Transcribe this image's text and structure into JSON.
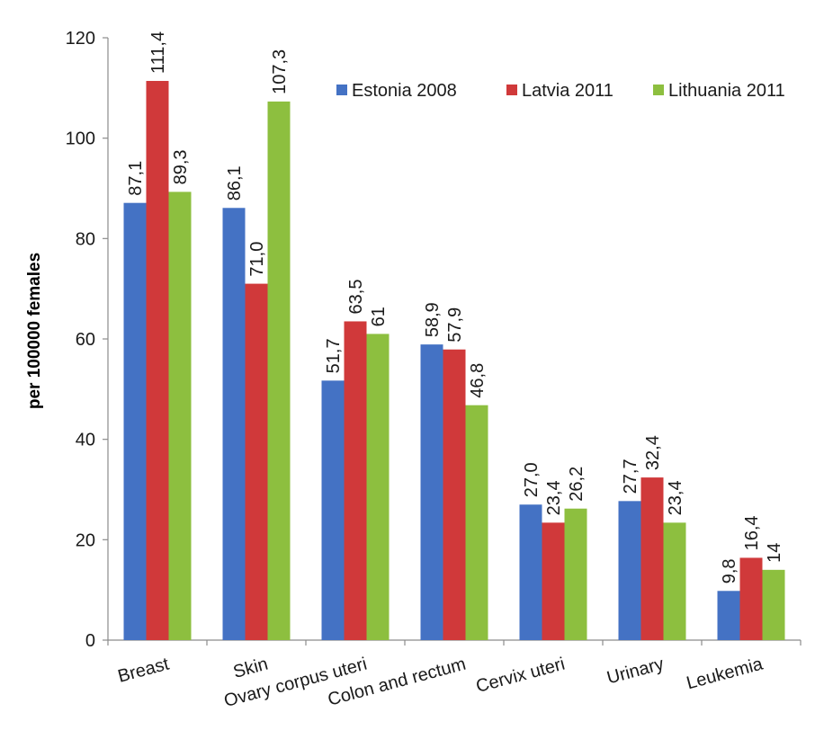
{
  "chart_data": {
    "type": "bar",
    "title": "",
    "xlabel": "",
    "ylabel": "per 100000 females",
    "ylim": [
      0,
      120
    ],
    "yticks": [
      "0",
      "20",
      "40",
      "60",
      "80",
      "100",
      "120"
    ],
    "grid": false,
    "legend_position": "top-right",
    "categories": [
      "Breast",
      "Skin",
      "Ovary corpus uteri",
      "Colon and rectum",
      "Cervix uteri",
      "Urinary",
      "Leukemia"
    ],
    "series": [
      {
        "name": "Estonia 2008",
        "color": "#4472C4",
        "values": [
          87.1,
          86.1,
          51.7,
          58.9,
          27.0,
          27.7,
          9.8
        ],
        "labels": [
          "87,1",
          "86,1",
          "51,7",
          "58,9",
          "27,0",
          "27,7",
          "9,8"
        ]
      },
      {
        "name": "Latvia 2011",
        "color": "#D0393A",
        "values": [
          111.4,
          71.0,
          63.5,
          57.9,
          23.4,
          32.4,
          16.4
        ],
        "labels": [
          "111,4",
          "71,0",
          "63,5",
          "57,9",
          "23,4",
          "32,4",
          "16,4"
        ]
      },
      {
        "name": "Lithuania 2011",
        "color": "#8DBF3F",
        "values": [
          89.3,
          107.3,
          61,
          46.8,
          26.2,
          23.4,
          14
        ],
        "labels": [
          "89,3",
          "107,3",
          "61",
          "46,8",
          "26,2",
          "23,4",
          "14"
        ]
      }
    ]
  }
}
